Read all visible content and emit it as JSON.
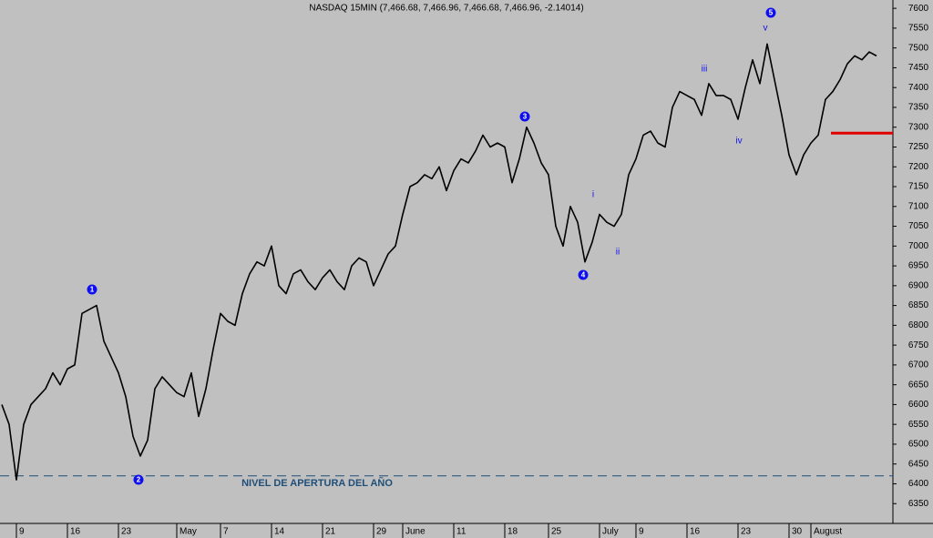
{
  "chart_data": {
    "type": "line",
    "title": "NASDAQ 15MIN (7,466.68, 7,466.96, 7,466.68, 7,466.96, -2.14014)",
    "categories": [
      null,
      null,
      "9",
      null,
      null,
      null,
      null,
      null,
      null,
      "16",
      null,
      null,
      null,
      null,
      null,
      null,
      "23",
      null,
      null,
      null,
      null,
      null,
      null,
      null,
      "May",
      null,
      null,
      null,
      null,
      null,
      "7",
      null,
      null,
      null,
      null,
      null,
      null,
      "14",
      null,
      null,
      null,
      null,
      null,
      null,
      "21",
      null,
      null,
      null,
      null,
      null,
      null,
      "29",
      null,
      null,
      null,
      "June",
      null,
      null,
      null,
      null,
      null,
      null,
      "11",
      null,
      null,
      null,
      null,
      null,
      null,
      "18",
      null,
      null,
      null,
      null,
      null,
      "25",
      null,
      null,
      null,
      null,
      null,
      null,
      "July",
      null,
      null,
      null,
      null,
      "9",
      null,
      null,
      null,
      null,
      null,
      null,
      "16",
      null,
      null,
      null,
      null,
      null,
      null,
      "23",
      null,
      null,
      null,
      null,
      null,
      null,
      "30",
      null,
      null,
      "August",
      null,
      null,
      null,
      null,
      null,
      null,
      null,
      null,
      null
    ],
    "series": [
      {
        "name": "NASDAQ",
        "color": "#000000",
        "values": [
          6600,
          6550,
          6410,
          6550,
          6600,
          6620,
          6640,
          6680,
          6650,
          6690,
          6700,
          6830,
          6840,
          6850,
          6760,
          6720,
          6680,
          6620,
          6520,
          6470,
          6510,
          6640,
          6670,
          6650,
          6630,
          6620,
          6680,
          6570,
          6640,
          6740,
          6830,
          6810,
          6800,
          6880,
          6930,
          6960,
          6950,
          7000,
          6900,
          6880,
          6930,
          6940,
          6910,
          6890,
          6920,
          6940,
          6910,
          6890,
          6950,
          6970,
          6960,
          6900,
          6940,
          6980,
          7000,
          7080,
          7150,
          7160,
          7180,
          7170,
          7200,
          7140,
          7190,
          7220,
          7210,
          7240,
          7280,
          7250,
          7260,
          7250,
          7160,
          7220,
          7300,
          7260,
          7210,
          7180,
          7050,
          7000,
          7100,
          7060,
          6960,
          7010,
          7080,
          7060,
          7050,
          7080,
          7180,
          7220,
          7280,
          7290,
          7260,
          7250,
          7350,
          7390,
          7380,
          7370,
          7330,
          7410,
          7380,
          7380,
          7370,
          7320,
          7400,
          7470,
          7410,
          7510,
          7420,
          7330,
          7230,
          7180,
          7230,
          7260,
          7280,
          7370,
          7390,
          7420,
          7460,
          7480,
          7470,
          7490,
          7480
        ]
      }
    ],
    "ylim": [
      6300,
      7621
    ],
    "yticks": [
      6350,
      6400,
      6450,
      6500,
      6550,
      6600,
      6650,
      6700,
      6750,
      6800,
      6850,
      6900,
      6950,
      7000,
      7050,
      7100,
      7150,
      7200,
      7250,
      7300,
      7350,
      7400,
      7450,
      7500,
      7550,
      7600
    ],
    "hlines": [
      {
        "value": 6420,
        "color": "#1f4e79",
        "dashed": true
      },
      {
        "value": 7285,
        "color": "#e00000",
        "dashed": false
      }
    ],
    "level_label": "NIVEL DE APERTURA DEL AÑO",
    "wave_labels": [
      "1",
      "2",
      "3",
      "4",
      "5"
    ],
    "sub_wave_labels": [
      "i",
      "ii",
      "iii",
      "iv",
      "v"
    ]
  }
}
